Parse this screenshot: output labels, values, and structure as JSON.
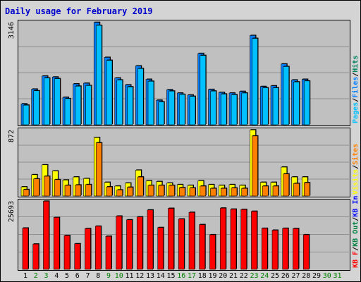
{
  "title": "Daily usage for February 2019",
  "colors": {
    "hits": "#00805c",
    "files": "#0080ff",
    "pages": "#00c0ff",
    "visits": "#ffff00",
    "sites": "#ff8000",
    "kbin": "#0000ff",
    "kbout": "#008040",
    "kbf": "#ff0000",
    "weekday": "#000000",
    "weekend": "#008000"
  },
  "chart_data": [
    {
      "type": "bar",
      "name": "hits-files-pages",
      "ymax_label": "3146",
      "ylim": [
        0,
        3146
      ],
      "legend": [
        {
          "key": "pages",
          "label": "Pages"
        },
        {
          "key": "sep",
          "label": "/"
        },
        {
          "key": "files",
          "label": "Files"
        },
        {
          "key": "sep",
          "label": "/"
        },
        {
          "key": "hits",
          "label": "Hits"
        }
      ],
      "series": [
        {
          "name": "Hits",
          "values": [
            640,
            1090,
            1490,
            1460,
            840,
            1250,
            1270,
            3130,
            2060,
            1430,
            1220,
            1800,
            1390,
            750,
            1070,
            970,
            910,
            2180,
            1080,
            990,
            970,
            1020,
            2730,
            1170,
            1190,
            1860,
            1370,
            1390
          ]
        },
        {
          "name": "Files",
          "values": [
            600,
            1040,
            1430,
            1410,
            800,
            1180,
            1200,
            3040,
            1970,
            1370,
            1160,
            1720,
            1330,
            700,
            1030,
            930,
            870,
            2120,
            1030,
            940,
            920,
            970,
            2640,
            1130,
            1130,
            1780,
            1310,
            1340
          ]
        }
      ]
    },
    {
      "type": "bar",
      "name": "visits-sites",
      "ymax_label": "872",
      "ylim": [
        0,
        872
      ],
      "legend": [
        {
          "key": "visits",
          "label": "Visits"
        },
        {
          "key": "sep",
          "label": "/"
        },
        {
          "key": "sites",
          "label": "Sites"
        }
      ],
      "series": [
        {
          "name": "Visits",
          "values": [
            120,
            280,
            410,
            330,
            210,
            250,
            230,
            770,
            180,
            130,
            170,
            340,
            200,
            190,
            170,
            150,
            140,
            200,
            150,
            140,
            150,
            140,
            870,
            180,
            180,
            380,
            250,
            250
          ]
        },
        {
          "name": "Sites",
          "values": [
            85,
            225,
            260,
            215,
            140,
            145,
            150,
            700,
            120,
            80,
            115,
            250,
            140,
            140,
            140,
            110,
            105,
            130,
            100,
            100,
            105,
            100,
            790,
            130,
            130,
            290,
            165,
            175
          ]
        }
      ]
    },
    {
      "type": "bar",
      "name": "kbytes",
      "ymax_label": "25693",
      "ylim": [
        0,
        25693
      ],
      "legend": [
        {
          "key": "kbf",
          "label": "KB F"
        },
        {
          "key": "sep",
          "label": "/"
        },
        {
          "key": "kbout",
          "label": "KB Out"
        },
        {
          "key": "sep",
          "label": "/"
        },
        {
          "key": "kbin",
          "label": "KB In"
        }
      ],
      "series": [
        {
          "name": "KB F",
          "values": [
            15500,
            9500,
            25600,
            19500,
            12700,
            9600,
            15300,
            16200,
            12400,
            20000,
            18600,
            19700,
            22300,
            15700,
            22900,
            18900,
            21400,
            16800,
            13000,
            23000,
            22600,
            22500,
            21800,
            15400,
            14700,
            15400,
            15300,
            13000
          ]
        }
      ]
    }
  ],
  "days": [
    "1",
    "2",
    "3",
    "4",
    "5",
    "6",
    "7",
    "8",
    "9",
    "10",
    "11",
    "12",
    "13",
    "14",
    "15",
    "16",
    "17",
    "18",
    "19",
    "20",
    "21",
    "22",
    "23",
    "24",
    "25",
    "26",
    "27",
    "28",
    "29",
    "30",
    "31"
  ],
  "weekend_days": [
    "2",
    "3",
    "9",
    "10",
    "16",
    "17",
    "23",
    "24",
    "30",
    "31"
  ]
}
